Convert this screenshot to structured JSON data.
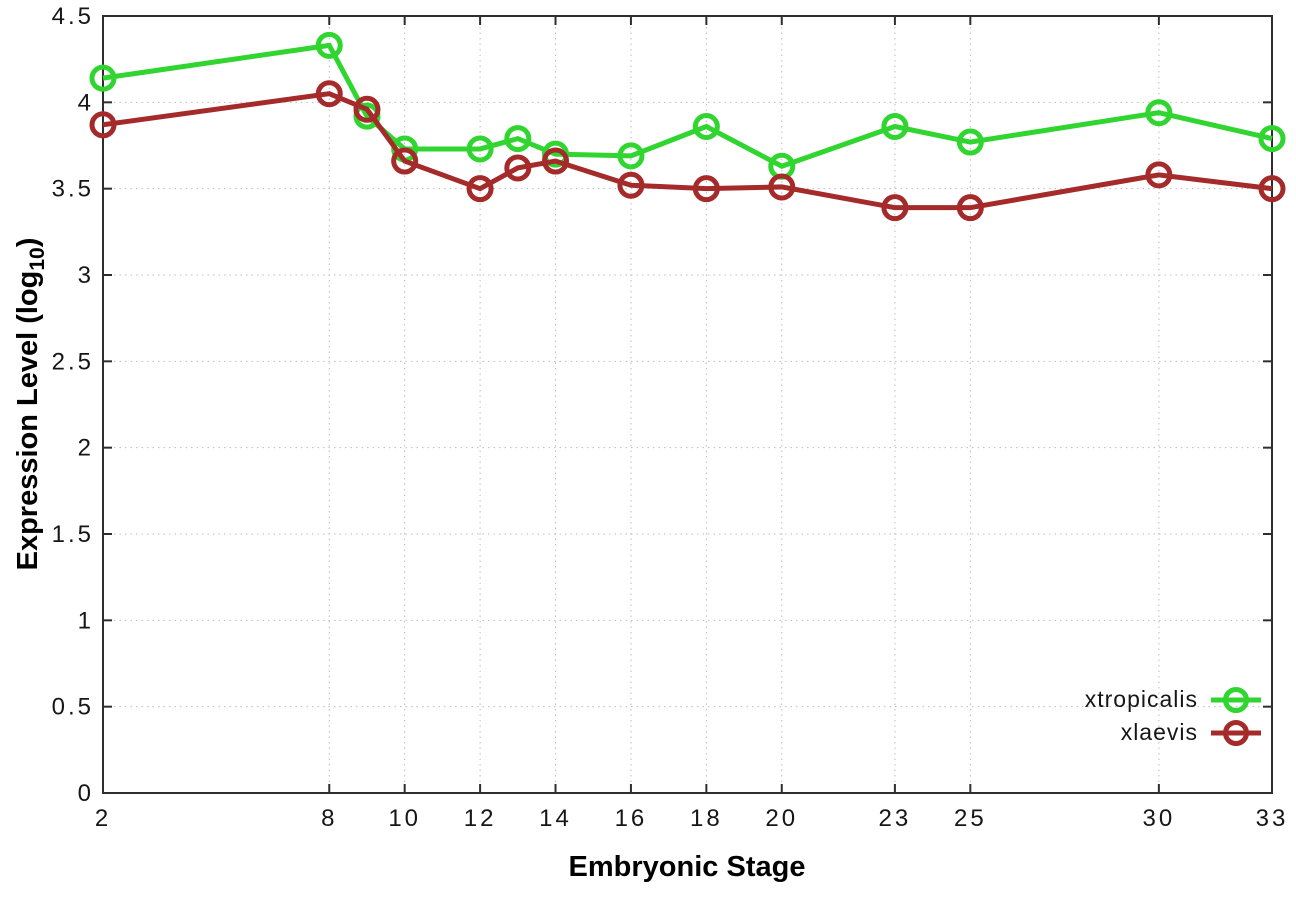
{
  "figure": {
    "background": "#ffffff",
    "ylabel_main": "Expression Level (log",
    "ylabel_sub": "10",
    "ylabel_close": ")"
  },
  "legend": {
    "position": "bottom-right-inside",
    "entries": [
      {
        "label": "xtropicalis",
        "color": "#30d530"
      },
      {
        "label": "xlaevis",
        "color": "#a52a2a"
      }
    ]
  },
  "colors": {
    "axis": "#2e2e2e",
    "grid": "#bcbcbc",
    "text": "#161616",
    "xtropicalis": "#30d530",
    "xlaevis": "#a52a2a"
  },
  "chart_data": {
    "type": "line",
    "title": "",
    "xlabel": "Embryonic Stage",
    "ylabel": "Expression Level (log10)",
    "xlim": [
      2,
      33
    ],
    "ylim": [
      0,
      4.5
    ],
    "grid": true,
    "grid_style": "dotted",
    "marker": "open-circle",
    "legend_position": "bottom-right-inside",
    "x": [
      2,
      8,
      9,
      10,
      12,
      13,
      14,
      16,
      18,
      20,
      23,
      25,
      30,
      33
    ],
    "xticks": [
      "2",
      "8",
      "10",
      "12",
      "14",
      "16",
      "18",
      "20",
      "23",
      "25",
      "30",
      "33"
    ],
    "yticks": [
      "0",
      "0.5",
      "1",
      "1.5",
      "2",
      "2.5",
      "3",
      "3.5",
      "4",
      "4.5"
    ],
    "series": [
      {
        "name": "xtropicalis",
        "color": "#30d530",
        "values": [
          4.14,
          4.33,
          3.92,
          3.73,
          3.73,
          3.79,
          3.7,
          3.69,
          3.86,
          3.63,
          3.86,
          3.77,
          3.94,
          3.79
        ]
      },
      {
        "name": "xlaevis",
        "color": "#a52a2a",
        "values": [
          3.87,
          4.05,
          3.96,
          3.66,
          3.5,
          3.62,
          3.66,
          3.52,
          3.5,
          3.51,
          3.39,
          3.39,
          3.58,
          3.5
        ]
      }
    ]
  }
}
